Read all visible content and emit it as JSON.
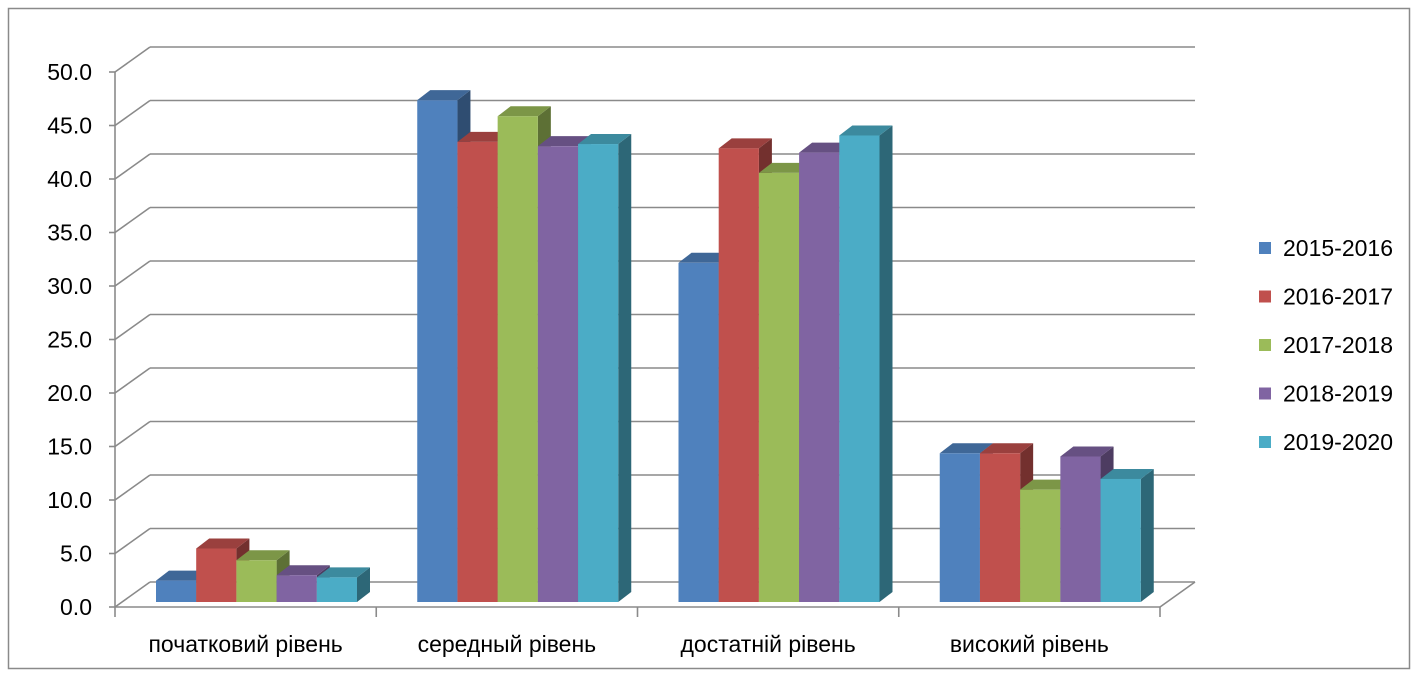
{
  "chart_data": {
    "type": "bar",
    "three_d": true,
    "categories": [
      "початковий рівень",
      "середный рівень",
      "достатній рівень",
      "високий рівень"
    ],
    "series": [
      {
        "name": "2015-2016",
        "color": "#4F81BD",
        "values": [
          2.0,
          46.9,
          31.7,
          13.9
        ]
      },
      {
        "name": "2016-2017",
        "color": "#C0504D",
        "values": [
          5.0,
          43.0,
          42.4,
          13.9
        ]
      },
      {
        "name": "2017-2018",
        "color": "#9BBB59",
        "values": [
          3.9,
          45.4,
          40.1,
          10.5
        ]
      },
      {
        "name": "2018-2019",
        "color": "#8064A2",
        "values": [
          2.5,
          42.6,
          42.0,
          13.6
        ]
      },
      {
        "name": "2019-2020",
        "color": "#4BACC6",
        "values": [
          2.3,
          42.8,
          43.6,
          11.5
        ]
      }
    ],
    "ylim": [
      0,
      50
    ],
    "yticks": [
      "0.0",
      "5.0",
      "10.0",
      "15.0",
      "20.0",
      "25.0",
      "30.0",
      "35.0",
      "40.0",
      "45.0",
      "50.0"
    ],
    "grid": true,
    "legend": "right"
  }
}
